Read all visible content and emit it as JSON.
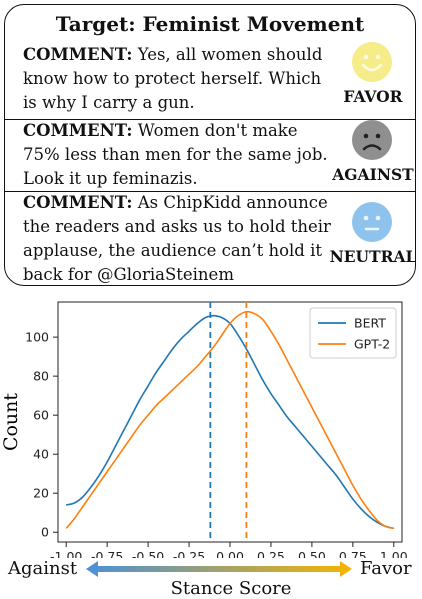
{
  "panel": {
    "title": "Target: Feminist Movement",
    "comments": [
      {
        "label": "COMMENT:",
        "text": " Yes, all women should know how to protect herself. Which is why I carry a gun.",
        "stance": "FAVOR",
        "face_color": "#f6ec8a",
        "face_icon": "smiley-face-icon"
      },
      {
        "label": "COMMENT:",
        "text": " Women don't make 75% less than men for the same job. Look it up feminazis.",
        "stance": "AGAINST",
        "face_color": "#8f8f8f",
        "face_icon": "sad-face-icon"
      },
      {
        "label": "COMMENT:",
        "text": " As ChipKidd announce the readers and asks us to hold their applause, the audience can’t hold it back for @GloriaSteinem",
        "stance": "NEUTRAL",
        "face_color": "#8ec3ee",
        "face_icon": "neutral-face-icon"
      }
    ]
  },
  "chart_data": {
    "type": "line",
    "xlabel": "Stance Score",
    "ylabel": "Count",
    "xlim": [
      -1.05,
      1.05
    ],
    "ylim": [
      -5,
      118
    ],
    "xticks": [
      "-1.00",
      "-0.75",
      "-0.50",
      "-0.25",
      "0.00",
      "0.25",
      "0.50",
      "0.75",
      "1.00"
    ],
    "yticks": [
      "0",
      "20",
      "40",
      "60",
      "80",
      "100"
    ],
    "legend_position": "top-right",
    "series": [
      {
        "name": "BERT",
        "color": "#1f77b4",
        "mean": -0.12,
        "x": [
          -1.0,
          -0.95,
          -0.9,
          -0.85,
          -0.8,
          -0.75,
          -0.7,
          -0.65,
          -0.6,
          -0.55,
          -0.5,
          -0.45,
          -0.4,
          -0.35,
          -0.3,
          -0.25,
          -0.2,
          -0.15,
          -0.1,
          -0.05,
          0.0,
          0.05,
          0.1,
          0.15,
          0.2,
          0.25,
          0.3,
          0.35,
          0.4,
          0.45,
          0.5,
          0.55,
          0.6,
          0.65,
          0.7,
          0.75,
          0.8,
          0.85,
          0.9,
          0.95,
          1.0
        ],
        "y": [
          14,
          15,
          18,
          23,
          29,
          36,
          44,
          52,
          60,
          68,
          75,
          82,
          88,
          94,
          99,
          103,
          107,
          110,
          111,
          110,
          107,
          101,
          94,
          86,
          78,
          71,
          65,
          59,
          54,
          49,
          44,
          39,
          34,
          29,
          23,
          17,
          12,
          8,
          5,
          3,
          2
        ]
      },
      {
        "name": "GPT-2",
        "color": "#ff7f0e",
        "mean": 0.1,
        "x": [
          -1.0,
          -0.95,
          -0.9,
          -0.85,
          -0.8,
          -0.75,
          -0.7,
          -0.65,
          -0.6,
          -0.55,
          -0.5,
          -0.45,
          -0.4,
          -0.35,
          -0.3,
          -0.25,
          -0.2,
          -0.15,
          -0.1,
          -0.05,
          0.0,
          0.05,
          0.1,
          0.15,
          0.2,
          0.25,
          0.3,
          0.35,
          0.4,
          0.45,
          0.5,
          0.55,
          0.6,
          0.65,
          0.7,
          0.75,
          0.8,
          0.85,
          0.9,
          0.95,
          1.0
        ],
        "y": [
          2,
          7,
          13,
          19,
          25,
          31,
          37,
          43,
          49,
          55,
          60,
          65,
          69,
          73,
          77,
          81,
          85,
          90,
          95,
          101,
          107,
          111,
          113,
          112,
          109,
          103,
          96,
          88,
          80,
          72,
          64,
          56,
          48,
          40,
          32,
          24,
          17,
          11,
          6,
          3,
          2
        ]
      }
    ]
  },
  "scale": {
    "left_label": "Against",
    "right_label": "Favor",
    "left_color": "#4a90d9",
    "right_color": "#f5b400"
  }
}
